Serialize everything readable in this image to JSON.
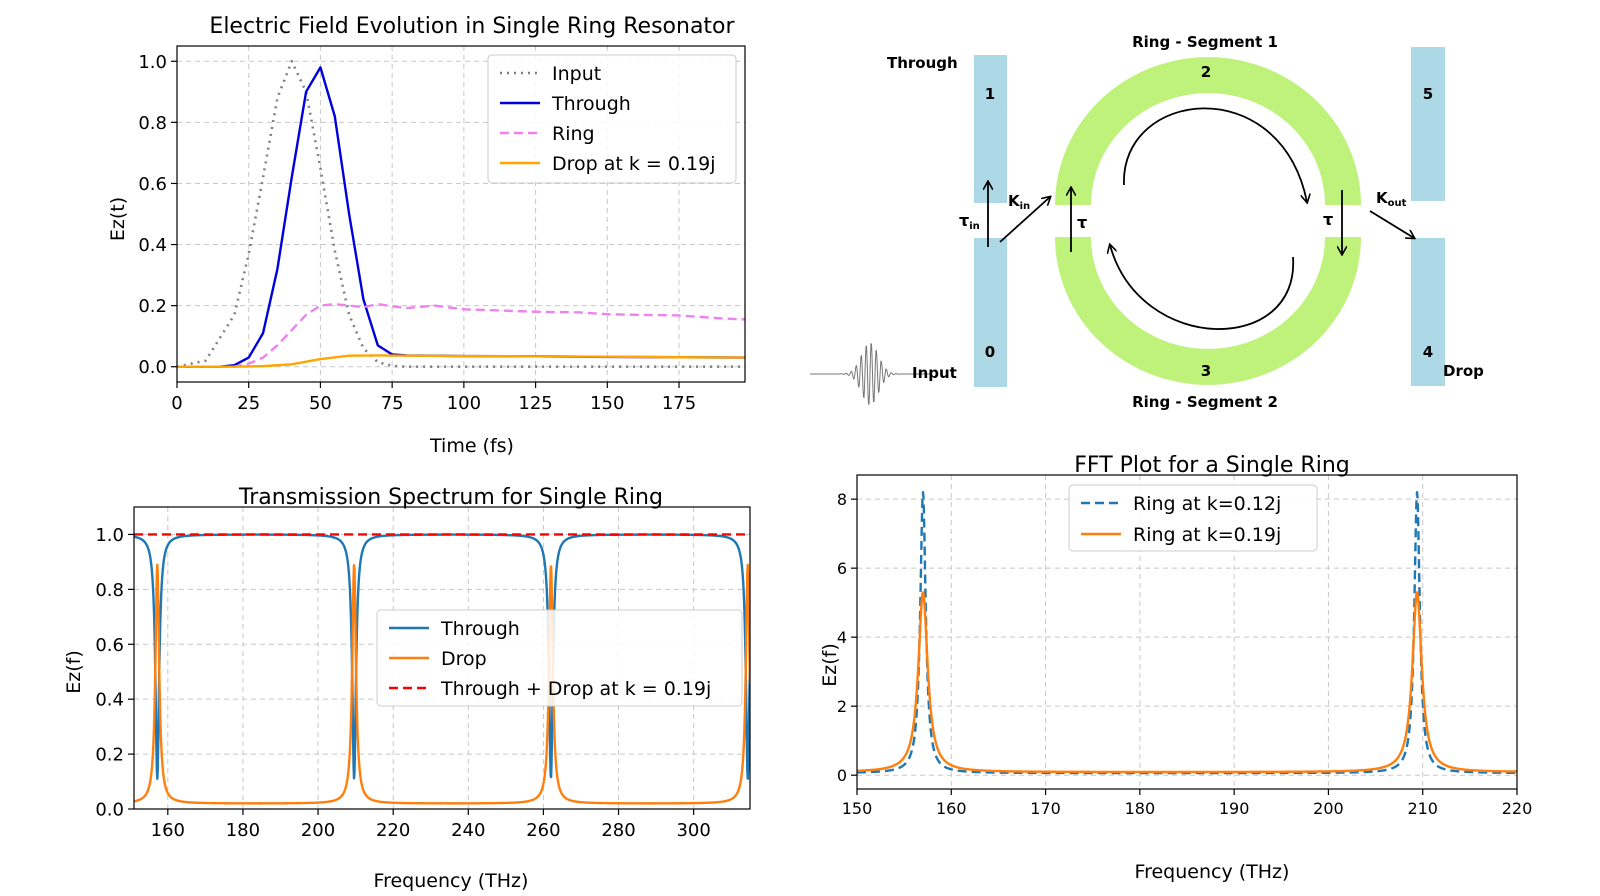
{
  "chart_data": [
    {
      "id": "time",
      "type": "line",
      "title": "Electric Field Evolution in Single Ring Resonator",
      "xlabel": "Time (fs)",
      "ylabel": "Ez(t)",
      "xlim": [
        0,
        198
      ],
      "ylim": [
        -0.05,
        1.05
      ],
      "xticks": [
        0,
        25,
        50,
        75,
        100,
        125,
        150,
        175
      ],
      "yticks": [
        0.0,
        0.2,
        0.4,
        0.6,
        0.8,
        1.0
      ],
      "xtick_labels": [
        "0",
        "25",
        "50",
        "75",
        "100",
        "125",
        "150",
        "175"
      ],
      "ytick_labels": [
        "0.0",
        "0.2",
        "0.4",
        "0.6",
        "0.8",
        "1.0"
      ],
      "grid": true,
      "legend": "upper right",
      "series": [
        {
          "name": "Input",
          "color": "#808080",
          "style": "dotted",
          "x": [
            0,
            10,
            20,
            25,
            30,
            35,
            40,
            45,
            50,
            55,
            60,
            65,
            70,
            75,
            80,
            90,
            100,
            120,
            150,
            198
          ],
          "y": [
            0.0,
            0.02,
            0.17,
            0.37,
            0.62,
            0.88,
            1.0,
            0.9,
            0.65,
            0.38,
            0.17,
            0.06,
            0.015,
            0.003,
            0.0,
            0.0,
            0.0,
            0.0,
            0.0,
            0.0
          ]
        },
        {
          "name": "Through",
          "color": "#0000dd",
          "style": "solid",
          "x": [
            0,
            15,
            20,
            25,
            30,
            35,
            40,
            45,
            50,
            55,
            60,
            65,
            70,
            75,
            80,
            100,
            125,
            150,
            175,
            198
          ],
          "y": [
            0.0,
            0.0,
            0.005,
            0.03,
            0.11,
            0.32,
            0.62,
            0.9,
            0.98,
            0.82,
            0.5,
            0.22,
            0.07,
            0.04,
            0.037,
            0.035,
            0.034,
            0.032,
            0.031,
            0.03
          ]
        },
        {
          "name": "Ring",
          "color": "#ee82ee",
          "style": "dashed",
          "x": [
            0,
            20,
            25,
            30,
            35,
            40,
            45,
            50,
            55,
            60,
            65,
            70,
            75,
            80,
            90,
            100,
            110,
            125,
            140,
            150,
            160,
            175,
            190,
            198
          ],
          "y": [
            0.0,
            0.0,
            0.01,
            0.03,
            0.07,
            0.12,
            0.17,
            0.2,
            0.205,
            0.2,
            0.195,
            0.205,
            0.198,
            0.192,
            0.2,
            0.188,
            0.185,
            0.18,
            0.178,
            0.172,
            0.17,
            0.168,
            0.158,
            0.155
          ]
        },
        {
          "name": "Drop at k = 0.19j",
          "color": "#ffa500",
          "style": "solid",
          "x": [
            0,
            20,
            30,
            40,
            50,
            60,
            70,
            80,
            100,
            125,
            150,
            175,
            198
          ],
          "y": [
            0.0,
            0.0,
            0.002,
            0.008,
            0.025,
            0.036,
            0.037,
            0.036,
            0.035,
            0.034,
            0.033,
            0.031,
            0.03
          ]
        }
      ]
    },
    {
      "id": "transmission",
      "type": "line",
      "title": "Transmission Spectrum for Single Ring",
      "xlabel": "Frequency (THz)",
      "ylabel": "Ez(f)",
      "xlim": [
        151,
        315
      ],
      "ylim": [
        0.0,
        1.1
      ],
      "xticks": [
        160,
        180,
        200,
        220,
        240,
        260,
        280,
        300
      ],
      "yticks": [
        0.0,
        0.2,
        0.4,
        0.6,
        0.8,
        1.0
      ],
      "xtick_labels": [
        "160",
        "180",
        "200",
        "220",
        "240",
        "260",
        "280",
        "300"
      ],
      "ytick_labels": [
        "0.0",
        "0.2",
        "0.4",
        "0.6",
        "0.8",
        "1.0"
      ],
      "grid": true,
      "legend": "center right",
      "resonances_THz": [
        157.2,
        209.6,
        262.0,
        314.4
      ],
      "fsr_THz": 52.4,
      "series": [
        {
          "name": "Through",
          "color": "#1f77b4",
          "style": "solid",
          "min": 0.11,
          "max": 1.0
        },
        {
          "name": "Drop",
          "color": "#ff7f0e",
          "style": "solid",
          "min": 0.02,
          "max": 0.89
        },
        {
          "name": "Through + Drop at k = 0.19j",
          "color": "#ff0000",
          "style": "dashed",
          "value": 1.0
        }
      ]
    },
    {
      "id": "fft",
      "type": "line",
      "title": "FFT Plot for a Single Ring",
      "xlabel": "Frequency (THz)",
      "ylabel": "Ez(f)",
      "xlim": [
        150,
        220
      ],
      "ylim": [
        -0.4,
        8.7
      ],
      "xticks": [
        150,
        160,
        170,
        180,
        190,
        200,
        210,
        220
      ],
      "yticks": [
        0,
        2,
        4,
        6,
        8
      ],
      "xtick_labels": [
        "150",
        "160",
        "170",
        "180",
        "190",
        "200",
        "210",
        "220"
      ],
      "ytick_labels": [
        "0",
        "2",
        "4",
        "6",
        "8"
      ],
      "grid": true,
      "legend": "upper center",
      "resonances_THz": [
        157.0,
        209.4
      ],
      "series": [
        {
          "name": "Ring at k=0.12j",
          "color": "#1f77b4",
          "style": "dashed",
          "peak": 8.2,
          "floor": 0.06
        },
        {
          "name": "Ring at k=0.19j",
          "color": "#ff7f0e",
          "style": "solid",
          "peak": 5.3,
          "floor": 0.09
        }
      ]
    }
  ],
  "diagram": {
    "through_label": "Through",
    "input_label": "Input",
    "drop_label": "Drop",
    "segment1_label": "Ring - Segment 1",
    "segment2_label": "Ring - Segment 2",
    "port_labels": [
      "0",
      "1",
      "2",
      "3",
      "4",
      "5"
    ],
    "tau_in_label": "τ",
    "tau_in_sub": "in",
    "k_in_label": "K",
    "k_in_sub": "in",
    "tau_left": "τ",
    "tau_right": "τ",
    "k_out_label": "K",
    "k_out_sub": "out",
    "waveguide_color": "#add8e6",
    "ring_color": "#bff27a"
  }
}
